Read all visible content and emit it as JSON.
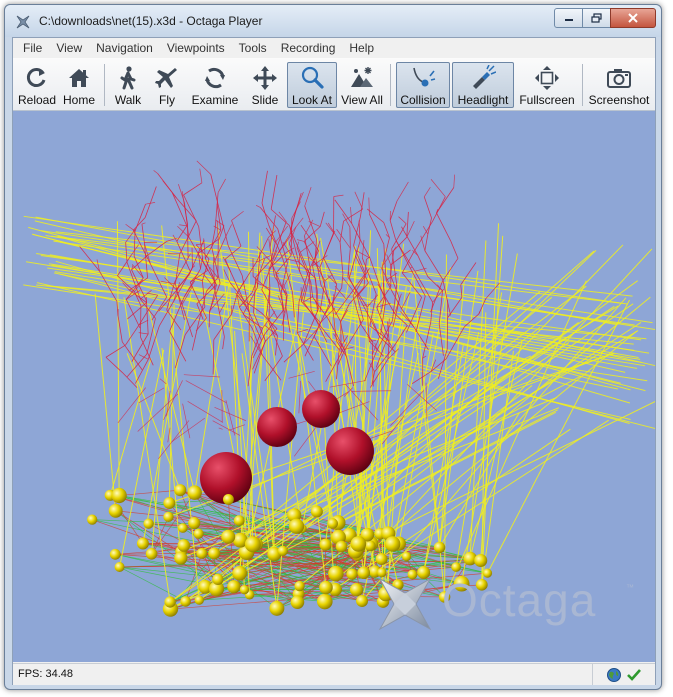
{
  "window": {
    "title": "C:\\downloads\\net(15).x3d - Octaga Player"
  },
  "menu": [
    "File",
    "View",
    "Navigation",
    "Viewpoints",
    "Tools",
    "Recording",
    "Help"
  ],
  "toolbar": {
    "reload": "Reload",
    "home": "Home",
    "walk": "Walk",
    "fly": "Fly",
    "examine": "Examine",
    "slide": "Slide",
    "look_at": "Look At",
    "view_all": "View All",
    "collision": "Collision",
    "headlight": "Headlight",
    "fullscreen": "Fullscreen",
    "screenshot": "Screenshot"
  },
  "viewport": {
    "background_color": "#8ea6d6",
    "watermark": "Octaga",
    "watermark_tm": "™"
  },
  "status": {
    "fps": "FPS: 34.48"
  }
}
